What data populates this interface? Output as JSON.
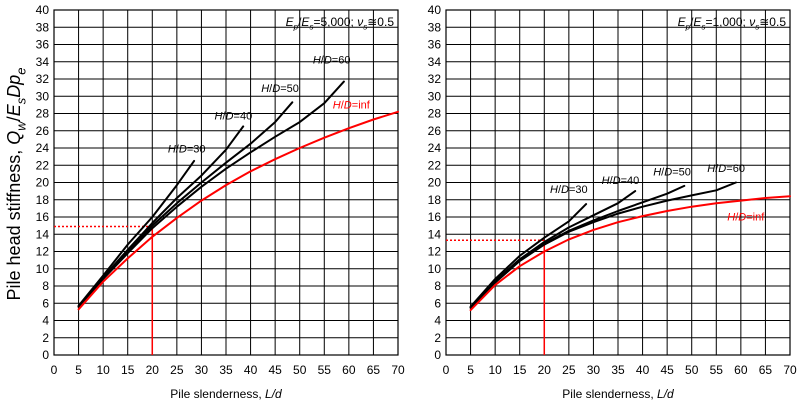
{
  "figure": {
    "ylabel": "Pile head stiffness, Q_w/E_sDp_e"
  },
  "chart_data": [
    {
      "type": "line",
      "xlabel": "Pile slenderness, L/d",
      "ylabel": "Pile head stiffness, Q_w/E_sDp_e",
      "annotation": "E_p/E_s=5,000; ν_s≅0.5",
      "xlim": [
        0,
        70
      ],
      "ylim": [
        0,
        40
      ],
      "xticks": [
        0,
        5,
        10,
        15,
        20,
        25,
        30,
        35,
        40,
        45,
        50,
        55,
        60,
        65,
        70
      ],
      "yticks": [
        0,
        2,
        4,
        6,
        8,
        10,
        12,
        14,
        16,
        18,
        20,
        22,
        24,
        26,
        28,
        30,
        32,
        34,
        36,
        38,
        40
      ],
      "grid": true,
      "series": [
        {
          "name": "H/D=30",
          "color": "#000000",
          "label_at": [
            27,
            23.5
          ],
          "x": [
            5,
            10,
            15,
            20,
            25,
            28.5
          ],
          "y": [
            5.7,
            9.2,
            12.8,
            16.0,
            19.7,
            22.5
          ]
        },
        {
          "name": "H/D=40",
          "color": "#000000",
          "label_at": [
            36.5,
            27.3
          ],
          "x": [
            5,
            10,
            15,
            20,
            25,
            30,
            35,
            38.5
          ],
          "y": [
            5.6,
            9.0,
            12.2,
            15.3,
            18.2,
            20.8,
            23.8,
            26.5
          ]
        },
        {
          "name": "H/D=50",
          "color": "#000000",
          "label_at": [
            46,
            30.5
          ],
          "x": [
            5,
            10,
            15,
            20,
            25,
            30,
            35,
            40,
            45,
            48.5
          ],
          "y": [
            5.6,
            8.9,
            12.0,
            15.0,
            17.6,
            20.0,
            22.3,
            24.5,
            27.0,
            29.3
          ]
        },
        {
          "name": "H/D=60",
          "color": "#000000",
          "label_at": [
            56.5,
            33.8
          ],
          "x": [
            5,
            10,
            15,
            20,
            25,
            30,
            35,
            40,
            45,
            50,
            55,
            59
          ],
          "y": [
            5.6,
            8.8,
            11.8,
            14.7,
            17.2,
            19.5,
            21.6,
            23.5,
            25.3,
            27.0,
            29.2,
            31.7
          ]
        },
        {
          "name": "H/D=inf",
          "color": "#ff0000",
          "label_at": [
            60.5,
            28.6
          ],
          "x": [
            5,
            10,
            15,
            20,
            25,
            30,
            35,
            40,
            45,
            50,
            55,
            60,
            65,
            70
          ],
          "y": [
            5.3,
            8.5,
            11.2,
            13.7,
            15.9,
            17.9,
            19.7,
            21.3,
            22.7,
            24.0,
            25.2,
            26.3,
            27.3,
            28.2
          ]
        }
      ],
      "reference": {
        "x": 20,
        "y": 14.9,
        "color": "#ff0000"
      }
    },
    {
      "type": "line",
      "xlabel": "Pile slenderness, L/d",
      "ylabel": "",
      "annotation": "E_p/E_s=1,000; ν_s≅0.5",
      "xlim": [
        0,
        70
      ],
      "ylim": [
        0,
        40
      ],
      "xticks": [
        0,
        5,
        10,
        15,
        20,
        25,
        30,
        35,
        40,
        45,
        50,
        55,
        60,
        65,
        70
      ],
      "yticks": [
        0,
        2,
        4,
        6,
        8,
        10,
        12,
        14,
        16,
        18,
        20,
        22,
        24,
        26,
        28,
        30,
        32,
        34,
        36,
        38,
        40
      ],
      "grid": true,
      "series": [
        {
          "name": "H/D=30",
          "color": "#000000",
          "label_at": [
            25,
            18.8
          ],
          "x": [
            5,
            10,
            15,
            20,
            25,
            28.5
          ],
          "y": [
            5.6,
            8.8,
            11.5,
            13.6,
            15.5,
            17.5
          ]
        },
        {
          "name": "H/D=40",
          "color": "#000000",
          "label_at": [
            35.5,
            19.8
          ],
          "x": [
            5,
            10,
            15,
            20,
            25,
            30,
            35,
            38.5
          ],
          "y": [
            5.5,
            8.6,
            11.1,
            13.1,
            14.8,
            16.2,
            17.6,
            19.0
          ]
        },
        {
          "name": "H/D=50",
          "color": "#000000",
          "label_at": [
            46,
            20.8
          ],
          "x": [
            5,
            10,
            15,
            20,
            25,
            30,
            35,
            40,
            45,
            48.5
          ],
          "y": [
            5.5,
            8.5,
            11.0,
            12.9,
            14.4,
            15.6,
            16.7,
            17.7,
            18.7,
            19.6
          ]
        },
        {
          "name": "H/D=60",
          "color": "#000000",
          "label_at": [
            57,
            21.2
          ],
          "x": [
            5,
            10,
            15,
            20,
            25,
            30,
            35,
            40,
            45,
            50,
            55,
            59
          ],
          "y": [
            5.5,
            8.4,
            10.9,
            12.8,
            14.3,
            15.4,
            16.4,
            17.2,
            17.9,
            18.5,
            19.1,
            20.0
          ]
        },
        {
          "name": "H/D=inf",
          "color": "#ff0000",
          "label_at": [
            61,
            15.6
          ],
          "x": [
            5,
            10,
            15,
            20,
            25,
            30,
            35,
            40,
            45,
            50,
            55,
            60,
            65,
            70
          ],
          "y": [
            5.2,
            8.1,
            10.3,
            12.0,
            13.4,
            14.5,
            15.4,
            16.1,
            16.7,
            17.2,
            17.6,
            17.9,
            18.2,
            18.4
          ]
        }
      ],
      "reference": {
        "x": 20,
        "y": 13.3,
        "color": "#ff0000"
      }
    }
  ]
}
